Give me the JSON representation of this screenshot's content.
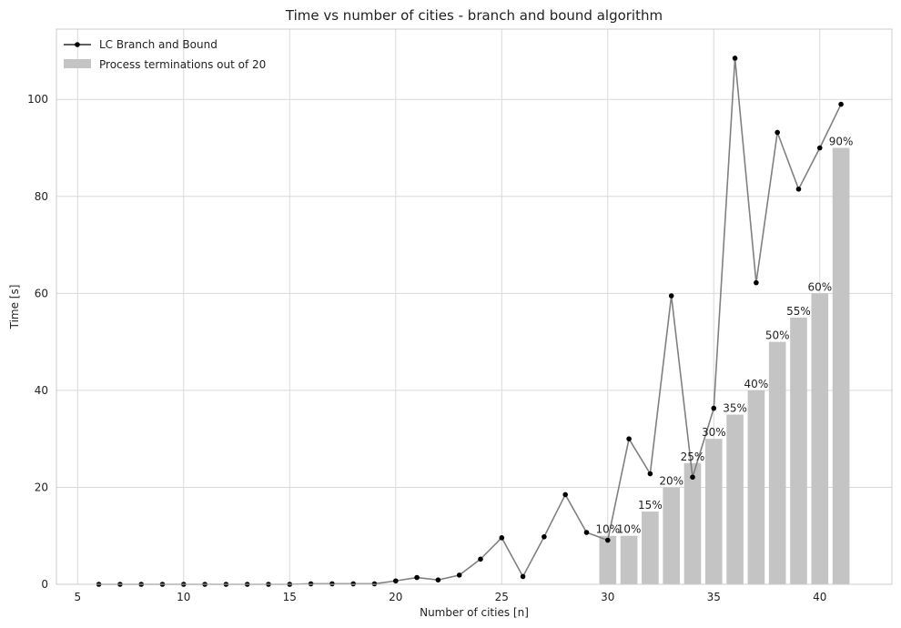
{
  "chart_data": {
    "type": "bar",
    "title": "Time vs number of cities - branch and bound algorithm",
    "xlabel": "Number of cities [n]",
    "ylabel": "Time [s]",
    "xlim": [
      4,
      43.4
    ],
    "ylim": [
      0,
      114.5
    ],
    "xticks": [
      5,
      10,
      15,
      20,
      25,
      30,
      35,
      40
    ],
    "yticks": [
      0,
      20,
      40,
      60,
      80,
      100
    ],
    "grid": true,
    "legend_position": "top-left",
    "series": [
      {
        "name": "LC Branch and Bound",
        "kind": "line",
        "color": "#808080",
        "marker_color": "#000000",
        "x": [
          6,
          7,
          8,
          9,
          10,
          11,
          12,
          13,
          14,
          15,
          16,
          17,
          18,
          19,
          20,
          21,
          22,
          23,
          24,
          25,
          26,
          27,
          28,
          29,
          30,
          31,
          32,
          33,
          34,
          35,
          36,
          37,
          38,
          39,
          40,
          41
        ],
        "y": [
          0,
          0,
          0,
          0,
          0,
          0,
          0,
          0,
          0,
          0,
          0.1,
          0.1,
          0.1,
          0.1,
          0.7,
          1.4,
          0.9,
          1.9,
          5.2,
          9.6,
          1.6,
          9.8,
          18.5,
          10.7,
          9.1,
          30,
          22.8,
          59.5,
          22.1,
          36.3,
          108.5,
          62.2,
          93.2,
          81.5,
          90,
          99
        ]
      },
      {
        "name": "Process terminations out of 20",
        "kind": "bar",
        "color": "#c4c4c4",
        "x": [
          30,
          31,
          32,
          33,
          34,
          35,
          36,
          37,
          38,
          39,
          40,
          41
        ],
        "y": [
          10,
          10,
          15,
          20,
          25,
          30,
          35,
          40,
          50,
          55,
          60,
          90
        ],
        "labels": [
          "10%",
          "10%",
          "15%",
          "20%",
          "25%",
          "30%",
          "35%",
          "40%",
          "50%",
          "55%",
          "60%",
          "90%"
        ]
      }
    ]
  }
}
